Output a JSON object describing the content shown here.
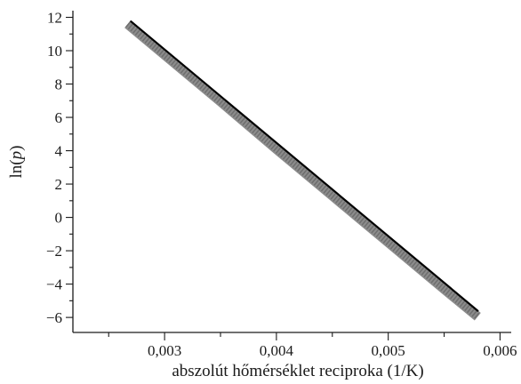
{
  "chart_data": {
    "type": "line",
    "xlabel": "abszolút hőmérséklet reciproka (1/K)",
    "ylabel": "ln(p)",
    "ylabel_parts": {
      "prefix": "ln(",
      "var": "p",
      "suffix": ")"
    },
    "xlim": [
      0.00218,
      0.0061
    ],
    "ylim": [
      -6.9,
      12.4
    ],
    "x_ticks": [
      {
        "value": 0.003,
        "label": "0,003"
      },
      {
        "value": 0.004,
        "label": "0,004"
      },
      {
        "value": 0.005,
        "label": "0,005"
      },
      {
        "value": 0.006,
        "label": "0,006"
      }
    ],
    "x_minor_step": 0.0005,
    "y_ticks": [
      {
        "value": 12,
        "label": "12"
      },
      {
        "value": 10,
        "label": "10"
      },
      {
        "value": 8,
        "label": "8"
      },
      {
        "value": 6,
        "label": "6"
      },
      {
        "value": 4,
        "label": "4"
      },
      {
        "value": 2,
        "label": "2"
      },
      {
        "value": 0,
        "label": "0"
      },
      {
        "value": -2,
        "label": "−2"
      },
      {
        "value": -4,
        "label": "−4"
      },
      {
        "value": -6,
        "label": "−6"
      }
    ],
    "y_minor_step": 1,
    "grid": false,
    "legend": false,
    "series": [
      {
        "kind": "data-band",
        "x": [
          0.00267,
          0.003,
          0.0035,
          0.004,
          0.0045,
          0.005,
          0.0055,
          0.0058
        ],
        "y": [
          11.6,
          9.75,
          6.95,
          4.1,
          1.3,
          -1.5,
          -4.3,
          -5.95
        ],
        "color": "#8c8c8c"
      },
      {
        "kind": "fit-line",
        "x": [
          0.0027,
          0.0058
        ],
        "y": [
          11.75,
          -5.6
        ],
        "color": "#000000"
      }
    ]
  }
}
